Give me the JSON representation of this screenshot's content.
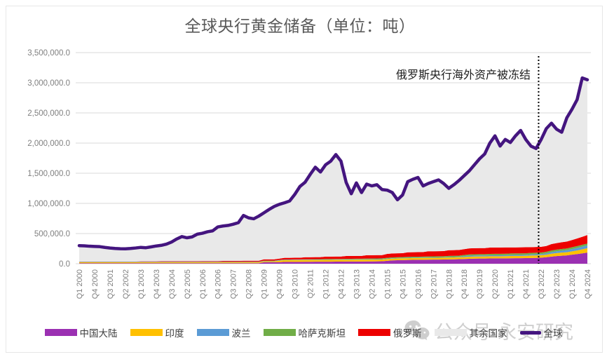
{
  "title": "全球央行黄金储备（单位：吨）",
  "annotation": {
    "text": "俄罗斯央行海外资产被冻结",
    "at_category_index": 89.5,
    "near_category": "Q3 2022",
    "line_style": "dotted",
    "line_color": "#000000"
  },
  "watermark": {
    "icon": "wechat-icon",
    "text": "公众号·永安研究",
    "color": "#c7c7c7"
  },
  "colors": {
    "title": "#595959",
    "axis_labels": "#7f7f7f",
    "gridline": "#d9d9d9",
    "annotation_text": "#1f1f1f",
    "legend_text": "#3b3b3b"
  },
  "chart_data": {
    "type": "area",
    "stacked": true,
    "grid": "horizontal",
    "legend_position": "bottom",
    "x_tick_interval": 3,
    "x_tick_rotation": -90,
    "ylim": [
      0,
      3500000
    ],
    "y_tick_step": 500000,
    "y_tick_labels": [
      "3,500,000.0",
      "3,000,000.0",
      "2,500,000.0",
      "2,000,000.0",
      "1,500,000.0",
      "1,000,000.0",
      "500,000.0",
      "0.0"
    ],
    "categories": [
      "Q1 2000",
      "Q2 2000",
      "Q3 2000",
      "Q4 2000",
      "Q1 2001",
      "Q2 2001",
      "Q3 2001",
      "Q4 2001",
      "Q1 2002",
      "Q2 2002",
      "Q3 2002",
      "Q4 2002",
      "Q1 2003",
      "Q2 2003",
      "Q3 2003",
      "Q4 2003",
      "Q1 2004",
      "Q2 2004",
      "Q3 2004",
      "Q4 2004",
      "Q1 2005",
      "Q2 2005",
      "Q3 2005",
      "Q4 2005",
      "Q1 2006",
      "Q2 2006",
      "Q3 2006",
      "Q4 2006",
      "Q1 2007",
      "Q2 2007",
      "Q3 2007",
      "Q4 2007",
      "Q1 2008",
      "Q2 2008",
      "Q3 2008",
      "Q4 2008",
      "Q1 2009",
      "Q2 2009",
      "Q3 2009",
      "Q4 2009",
      "Q1 2010",
      "Q2 2010",
      "Q3 2010",
      "Q4 2010",
      "Q1 2011",
      "Q2 2011",
      "Q3 2011",
      "Q4 2011",
      "Q1 2012",
      "Q2 2012",
      "Q3 2012",
      "Q4 2012",
      "Q1 2013",
      "Q2 2013",
      "Q3 2013",
      "Q4 2013",
      "Q1 2014",
      "Q2 2014",
      "Q3 2014",
      "Q4 2014",
      "Q1 2015",
      "Q2 2015",
      "Q3 2015",
      "Q4 2015",
      "Q1 2016",
      "Q2 2016",
      "Q3 2016",
      "Q4 2016",
      "Q1 2017",
      "Q2 2017",
      "Q3 2017",
      "Q4 2017",
      "Q1 2018",
      "Q2 2018",
      "Q3 2018",
      "Q4 2018",
      "Q1 2019",
      "Q2 2019",
      "Q3 2019",
      "Q4 2019",
      "Q1 2020",
      "Q2 2020",
      "Q3 2020",
      "Q4 2020",
      "Q1 2021",
      "Q2 2021",
      "Q3 2021",
      "Q4 2021",
      "Q1 2022",
      "Q2 2022",
      "Q3 2022",
      "Q4 2022",
      "Q1 2023",
      "Q2 2023",
      "Q3 2023",
      "Q4 2023",
      "Q1 2024",
      "Q2 2024",
      "Q3 2024",
      "Q4 2024"
    ],
    "series": [
      {
        "name": "中国大陆",
        "type": "area",
        "color": "#9b30b2",
        "values": [
          8000,
          8000,
          8000,
          8000,
          8000,
          8000,
          8000,
          8000,
          8000,
          8000,
          8000,
          8000,
          8000,
          8000,
          8000,
          8000,
          8000,
          8000,
          8000,
          8000,
          8000,
          8000,
          8000,
          8000,
          8000,
          8000,
          8000,
          8000,
          8000,
          8000,
          8000,
          8000,
          8000,
          8000,
          8000,
          8000,
          25000,
          25000,
          25000,
          25000,
          30000,
          30000,
          31000,
          31000,
          32000,
          32000,
          33000,
          33000,
          34000,
          34000,
          35000,
          35000,
          36000,
          36000,
          37000,
          37000,
          38000,
          38000,
          39000,
          40000,
          48000,
          55000,
          58000,
          60000,
          62000,
          64000,
          65000,
          66000,
          67000,
          68000,
          69000,
          70000,
          71000,
          73000,
          75000,
          78000,
          82000,
          85000,
          86000,
          86000,
          87000,
          88000,
          88000,
          89000,
          90000,
          91000,
          92000,
          93000,
          94000,
          96000,
          100000,
          108000,
          118000,
          126000,
          132000,
          138000,
          150000,
          160000,
          172000,
          185000
        ]
      },
      {
        "name": "印度",
        "type": "area",
        "color": "#ffc000",
        "values": [
          16000,
          16000,
          16000,
          16000,
          16000,
          16000,
          16000,
          16000,
          16000,
          16000,
          16000,
          16000,
          16000,
          16000,
          16000,
          16000,
          16000,
          16000,
          16000,
          16000,
          16000,
          16000,
          16000,
          16000,
          16000,
          16000,
          16000,
          16000,
          16000,
          16000,
          16000,
          16000,
          16000,
          16000,
          16000,
          16000,
          16000,
          16000,
          16000,
          28000,
          30000,
          30000,
          30000,
          30000,
          30000,
          30000,
          30000,
          30000,
          30000,
          30000,
          30000,
          30000,
          30000,
          30000,
          30000,
          30000,
          30000,
          30000,
          30000,
          30000,
          30000,
          30000,
          30000,
          30000,
          30000,
          30000,
          30000,
          30000,
          30000,
          30000,
          30000,
          30000,
          32000,
          32000,
          32000,
          32000,
          34000,
          34000,
          34000,
          34000,
          36000,
          36000,
          36000,
          36000,
          38000,
          38000,
          38000,
          38000,
          42000,
          42000,
          42000,
          42000,
          48000,
          50000,
          52000,
          53000,
          55000,
          60000,
          66000,
          72000
        ]
      },
      {
        "name": "波兰",
        "type": "area",
        "color": "#5b9bd5",
        "values": [
          6000,
          6000,
          6000,
          6000,
          6000,
          6000,
          6000,
          6000,
          6000,
          6000,
          6000,
          6000,
          6000,
          6000,
          6000,
          6000,
          6000,
          6000,
          6000,
          6000,
          6000,
          6000,
          6000,
          6000,
          6000,
          6000,
          6000,
          6000,
          6000,
          6000,
          6000,
          6000,
          6000,
          6000,
          6000,
          6000,
          6000,
          6000,
          6000,
          6000,
          6000,
          6000,
          6000,
          6000,
          6000,
          6000,
          6000,
          6000,
          6000,
          6000,
          6000,
          6000,
          6000,
          6000,
          6000,
          6000,
          6000,
          6000,
          6000,
          6000,
          6000,
          6000,
          6000,
          6000,
          6000,
          6000,
          6000,
          6000,
          6000,
          6000,
          6000,
          6000,
          6000,
          6000,
          6000,
          16000,
          16000,
          16000,
          16000,
          16000,
          16000,
          16000,
          16000,
          16000,
          16000,
          16000,
          16000,
          16000,
          18000,
          18000,
          18000,
          22000,
          26000,
          30000,
          32000,
          34000,
          38000,
          42000,
          46000,
          48000
        ]
      },
      {
        "name": "哈萨克斯坦",
        "type": "area",
        "color": "#70ad47",
        "values": [
          4000,
          4000,
          4000,
          4000,
          4000,
          4000,
          4000,
          4000,
          4000,
          4000,
          4000,
          4000,
          4000,
          4000,
          4000,
          4000,
          4000,
          4000,
          4000,
          4000,
          4000,
          4000,
          4000,
          4000,
          4000,
          4000,
          4000,
          4000,
          4000,
          4000,
          4000,
          4000,
          4000,
          4000,
          4000,
          4000,
          4000,
          4000,
          4000,
          4000,
          4000,
          4000,
          4000,
          4000,
          6000,
          6000,
          6000,
          6000,
          8000,
          8000,
          8000,
          8000,
          10000,
          10000,
          10000,
          10000,
          12000,
          12000,
          12000,
          12000,
          14000,
          14000,
          14000,
          14000,
          16000,
          16000,
          16000,
          16000,
          18000,
          18000,
          18000,
          18000,
          20000,
          20000,
          20000,
          20000,
          22000,
          22000,
          22000,
          22000,
          24000,
          24000,
          24000,
          24000,
          26000,
          26000,
          26000,
          26000,
          26000,
          26000,
          26000,
          26000,
          28000,
          28000,
          28000,
          28000,
          30000,
          30000,
          30000,
          30000
        ]
      },
      {
        "name": "俄罗斯",
        "type": "area",
        "color": "#ed0000",
        "values": [
          3000,
          3000,
          3000,
          3000,
          3000,
          3000,
          3000,
          3000,
          3000,
          3000,
          3000,
          3000,
          5000,
          5000,
          5000,
          5000,
          6000,
          6000,
          6000,
          6000,
          8000,
          8000,
          8000,
          8000,
          10000,
          10000,
          10000,
          10000,
          12000,
          12000,
          12000,
          12000,
          16000,
          16000,
          16000,
          16000,
          22000,
          22000,
          22000,
          22000,
          28000,
          28000,
          28000,
          28000,
          34000,
          34000,
          34000,
          34000,
          40000,
          40000,
          40000,
          40000,
          46000,
          46000,
          46000,
          46000,
          55000,
          55000,
          55000,
          55000,
          65000,
          65000,
          65000,
          65000,
          75000,
          75000,
          75000,
          75000,
          85000,
          85000,
          85000,
          85000,
          95000,
          95000,
          95000,
          95000,
          100000,
          100000,
          100000,
          100000,
          105000,
          105000,
          105000,
          105000,
          100000,
          100000,
          100000,
          100000,
          95000,
          95000,
          95000,
          95000,
          105000,
          108000,
          112000,
          115000,
          120000,
          126000,
          132000,
          140000
        ]
      },
      {
        "name": "其余国家",
        "type": "area",
        "color": "#e9e9e9",
        "remainder_of_total": true,
        "values": null
      },
      {
        "name": "全球",
        "type": "line",
        "color": "#44157f",
        "is_total": true,
        "values": [
          300000,
          296000,
          290000,
          287000,
          283000,
          270000,
          260000,
          253000,
          249000,
          247000,
          253000,
          261000,
          271000,
          265000,
          279000,
          294000,
          305000,
          325000,
          360000,
          410000,
          450000,
          430000,
          445000,
          490000,
          505000,
          530000,
          545000,
          610000,
          625000,
          635000,
          655000,
          680000,
          800000,
          760000,
          745000,
          790000,
          845000,
          900000,
          950000,
          985000,
          1010000,
          1040000,
          1150000,
          1280000,
          1350000,
          1480000,
          1600000,
          1520000,
          1640000,
          1700000,
          1810000,
          1700000,
          1350000,
          1160000,
          1340000,
          1180000,
          1320000,
          1290000,
          1310000,
          1230000,
          1220000,
          1180000,
          1060000,
          1140000,
          1360000,
          1400000,
          1430000,
          1290000,
          1330000,
          1360000,
          1390000,
          1330000,
          1250000,
          1310000,
          1380000,
          1460000,
          1540000,
          1640000,
          1740000,
          1820000,
          2000000,
          2120000,
          1950000,
          2060000,
          2010000,
          2120000,
          2210000,
          2060000,
          1950000,
          1910000,
          2060000,
          2240000,
          2330000,
          2230000,
          2180000,
          2420000,
          2560000,
          2720000,
          3080000,
          3050000
        ]
      }
    ]
  }
}
